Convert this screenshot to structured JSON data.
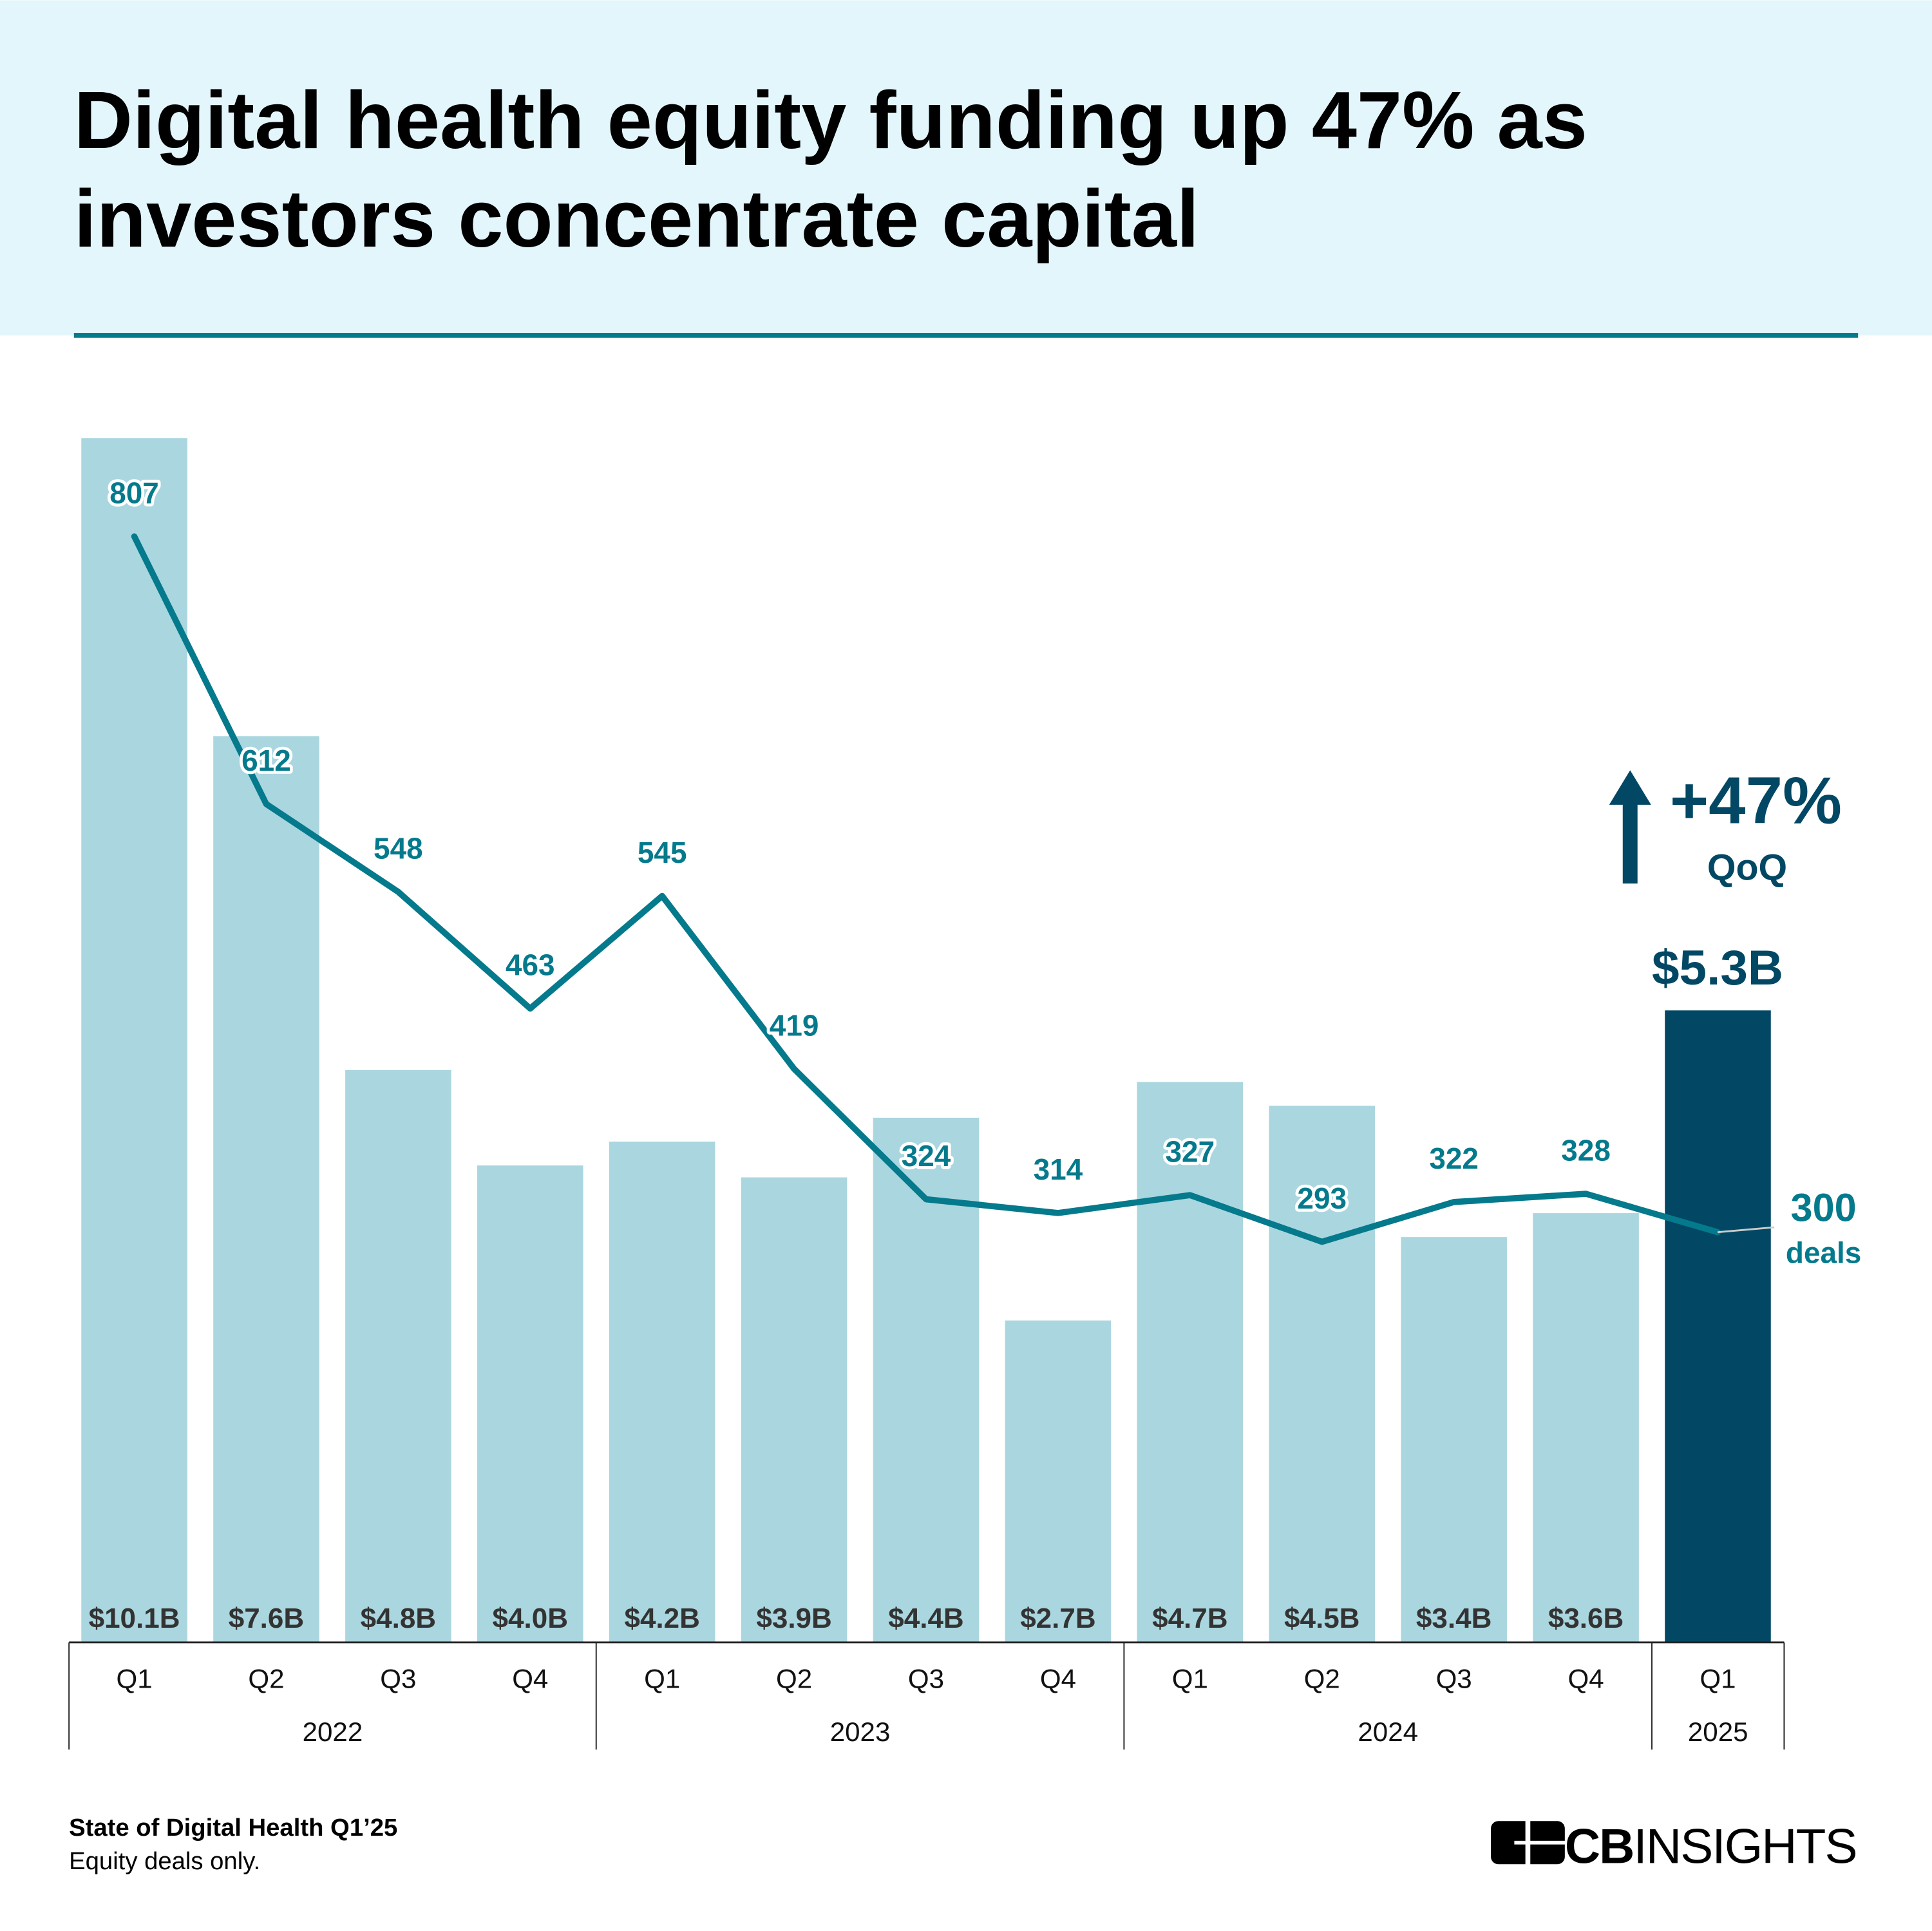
{
  "header": {
    "title_line1": "Digital health equity funding up 47% as",
    "title_line2": "investors concentrate capital"
  },
  "colors": {
    "header_bg": "#e3f6fb",
    "rule": "#047a8c",
    "bar": "#aad6df",
    "bar_highlight": "#024864",
    "line": "#047a8c",
    "annotation": "#024864"
  },
  "chart_data": {
    "type": "bar",
    "categories": [
      "Q1",
      "Q2",
      "Q3",
      "Q4",
      "Q1",
      "Q2",
      "Q3",
      "Q4",
      "Q1",
      "Q2",
      "Q3",
      "Q4",
      "Q1"
    ],
    "years": [
      {
        "label": "2022",
        "quarters": 4
      },
      {
        "label": "2023",
        "quarters": 4
      },
      {
        "label": "2024",
        "quarters": 4
      },
      {
        "label": "2025",
        "quarters": 1
      }
    ],
    "series": [
      {
        "type": "bar",
        "unit": "$B",
        "values": [
          10.1,
          7.6,
          4.8,
          4.0,
          4.2,
          3.9,
          4.4,
          2.7,
          4.7,
          4.5,
          3.4,
          3.6,
          5.3
        ],
        "labels": [
          "$10.1B",
          "$7.6B",
          "$4.8B",
          "$4.0B",
          "$4.2B",
          "$3.9B",
          "$4.4B",
          "$2.7B",
          "$4.7B",
          "$4.5B",
          "$3.4B",
          "$3.6B",
          "$5.3B"
        ]
      },
      {
        "type": "line",
        "values": [
          807,
          612,
          548,
          463,
          545,
          419,
          324,
          314,
          327,
          293,
          322,
          328,
          300
        ]
      }
    ],
    "grid": false,
    "annotations": {
      "change": "+47%",
      "change_label": "QoQ",
      "latest_funding": "$5.3B",
      "latest_deals": "300",
      "latest_deals_label": "deals"
    }
  },
  "footer": {
    "source": "State of Digital Health Q1’25",
    "note": "Equity deals only.",
    "logo_text": "CBINSIGHTS"
  }
}
